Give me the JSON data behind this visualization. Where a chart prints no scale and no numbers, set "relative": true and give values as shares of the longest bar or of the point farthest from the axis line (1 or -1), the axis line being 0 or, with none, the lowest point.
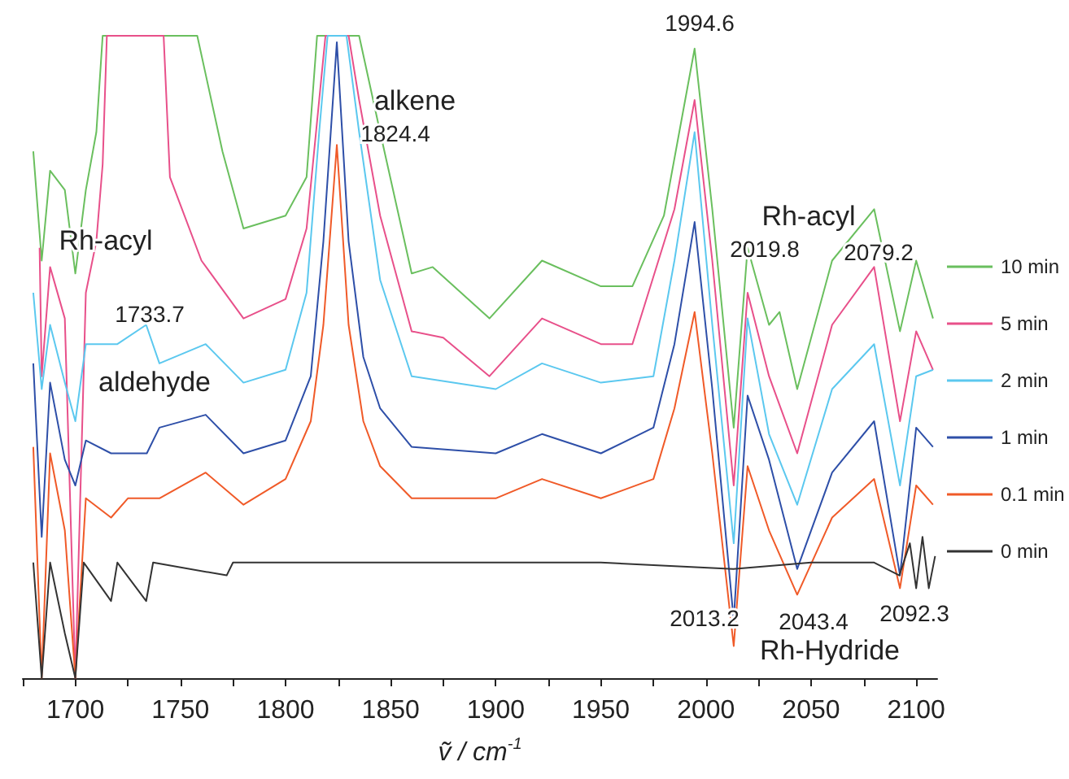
{
  "chart_data": {
    "type": "line",
    "relative": true,
    "xlabel": "ṽ / cm$^{-1}$",
    "xlim": [
      1675,
      2110
    ],
    "xticks": [
      {
        "value": 1675,
        "label": null
      },
      1700,
      {
        "value": 1725,
        "label": null
      },
      1750,
      {
        "value": 1775,
        "label": null
      },
      1800,
      {
        "value": 1825,
        "label": null
      },
      1850,
      {
        "value": 1875,
        "label": null
      },
      1900,
      {
        "value": 1925,
        "label": null
      },
      1950,
      {
        "value": 1975,
        "label": null
      },
      2000,
      {
        "value": 2025,
        "label": null
      },
      2050,
      {
        "value": 2075,
        "label": null
      },
      2100
    ],
    "tick_labels": "x",
    "grid": false,
    "legend": "right",
    "marker": "none",
    "line_style": "solid",
    "series": [
      {
        "name": "10 min",
        "color": "#6abf5e",
        "x": [
          1680,
          1684,
          1688,
          1695,
          1700,
          1705,
          1710,
          1713,
          1758,
          1762,
          1770,
          1780,
          1800,
          1810,
          1815,
          1835,
          1845,
          1860,
          1870,
          1897,
          1922,
          1950,
          1965,
          1980,
          1994.6,
          2003,
          2013.2,
          2019.8,
          2030,
          2035,
          2043.4,
          2060,
          2080,
          2092.3,
          2100,
          2108
        ],
        "values": [
          0.82,
          0.65,
          0.79,
          0.76,
          0.63,
          0.76,
          0.85,
          1,
          1,
          0.94,
          0.82,
          0.7,
          0.72,
          0.78,
          1,
          1,
          0.85,
          0.63,
          0.64,
          0.56,
          0.65,
          0.61,
          0.61,
          0.72,
          0.98,
          0.73,
          0.39,
          0.67,
          0.55,
          0.57,
          0.45,
          0.65,
          0.73,
          0.54,
          0.65,
          0.56
        ]
      },
      {
        "name": "5 min",
        "color": "#e8508a",
        "x": [
          1683,
          1684,
          1688,
          1695,
          1700,
          1705,
          1710,
          1713,
          1715,
          1742,
          1745,
          1760,
          1780,
          1800,
          1810,
          1816,
          1819,
          1830,
          1835,
          1845,
          1860,
          1875,
          1897,
          1922,
          1950,
          1965,
          1985,
          1994.6,
          2003,
          2013.2,
          2019.8,
          2030,
          2043.4,
          2060,
          2080,
          2092.3,
          2100,
          2108
        ],
        "values": [
          0.67,
          0.47,
          0.64,
          0.56,
          0,
          0.6,
          0.68,
          0.8,
          1,
          1,
          0.78,
          0.65,
          0.56,
          0.59,
          0.7,
          0.9,
          1,
          1,
          0.9,
          0.72,
          0.54,
          0.53,
          0.47,
          0.56,
          0.52,
          0.52,
          0.73,
          0.9,
          0.65,
          0.3,
          0.6,
          0.47,
          0.35,
          0.55,
          0.64,
          0.4,
          0.54,
          0.48
        ]
      },
      {
        "name": "2 min",
        "color": "#5bc8ef",
        "x": [
          1680,
          1684,
          1688,
          1695,
          1700,
          1705,
          1720,
          1733.7,
          1740,
          1762,
          1780,
          1800,
          1810,
          1816,
          1820,
          1829,
          1835,
          1845,
          1860,
          1900,
          1922,
          1950,
          1975,
          1985,
          1994.6,
          2003,
          2013.2,
          2019.8,
          2030,
          2043.4,
          2060,
          2080,
          2092.3,
          2100,
          2108
        ],
        "values": [
          0.6,
          0.45,
          0.55,
          0.46,
          0.4,
          0.52,
          0.52,
          0.55,
          0.49,
          0.52,
          0.46,
          0.48,
          0.6,
          0.85,
          1,
          1,
          0.85,
          0.62,
          0.47,
          0.45,
          0.49,
          0.46,
          0.47,
          0.65,
          0.85,
          0.55,
          0.21,
          0.56,
          0.38,
          0.27,
          0.45,
          0.52,
          0.3,
          0.47,
          0.48
        ]
      },
      {
        "name": "1 min",
        "color": "#2e4fa8",
        "x": [
          1680,
          1684,
          1688,
          1695,
          1700,
          1705,
          1717,
          1734,
          1740,
          1762,
          1780,
          1800,
          1812,
          1818,
          1824.4,
          1830,
          1837,
          1845,
          1860,
          1900,
          1922,
          1950,
          1975,
          1985,
          1994.6,
          2003,
          2013.2,
          2019.8,
          2030,
          2043.4,
          2060,
          2080,
          2092.3,
          2100,
          2108
        ],
        "values": [
          0.49,
          0.22,
          0.46,
          0.34,
          0.3,
          0.37,
          0.35,
          0.35,
          0.39,
          0.41,
          0.35,
          0.37,
          0.47,
          0.68,
          0.99,
          0.68,
          0.5,
          0.42,
          0.36,
          0.35,
          0.38,
          0.35,
          0.39,
          0.52,
          0.71,
          0.45,
          0.09,
          0.44,
          0.34,
          0.17,
          0.32,
          0.4,
          0.16,
          0.39,
          0.36
        ]
      },
      {
        "name": "0.1 min",
        "color": "#f05a28",
        "x": [
          1680,
          1684,
          1688,
          1695,
          1700,
          1705,
          1717,
          1725,
          1740,
          1762,
          1780,
          1800,
          1812,
          1818,
          1824.4,
          1830,
          1837,
          1845,
          1860,
          1900,
          1922,
          1950,
          1975,
          1985,
          1994.6,
          2003,
          2013.2,
          2019.8,
          2030,
          2043.4,
          2060,
          2080,
          2092.3,
          2100,
          2108
        ],
        "values": [
          0.36,
          0,
          0.35,
          0.23,
          0,
          0.28,
          0.25,
          0.28,
          0.28,
          0.32,
          0.27,
          0.31,
          0.4,
          0.55,
          0.83,
          0.55,
          0.4,
          0.33,
          0.28,
          0.28,
          0.31,
          0.28,
          0.31,
          0.42,
          0.57,
          0.35,
          0.05,
          0.33,
          0.23,
          0.13,
          0.25,
          0.31,
          0.14,
          0.3,
          0.27
        ]
      },
      {
        "name": "0 min",
        "color": "#333333",
        "x": [
          1680,
          1684,
          1688,
          1695,
          1700,
          1704,
          1717,
          1720,
          1733.7,
          1737,
          1772,
          1775,
          1850,
          1950,
          2013,
          2050,
          2080,
          2092,
          2097,
          2100,
          2103,
          2106,
          2109
        ],
        "values": [
          0.18,
          0,
          0.18,
          0.07,
          0,
          0.18,
          0.12,
          0.18,
          0.12,
          0.18,
          0.16,
          0.18,
          0.18,
          0.18,
          0.17,
          0.18,
          0.18,
          0.16,
          0.21,
          0.14,
          0.22,
          0.14,
          0.19
        ]
      }
    ],
    "annotations": [
      "Rh-acyl",
      "1733.7",
      "aldehyde",
      "alkene",
      "1824.4",
      "1994.6",
      "Rh-acyl",
      "2019.8",
      "2079.2",
      "2013.2",
      "2043.4",
      "2092.3",
      "Rh-Hydride"
    ]
  }
}
